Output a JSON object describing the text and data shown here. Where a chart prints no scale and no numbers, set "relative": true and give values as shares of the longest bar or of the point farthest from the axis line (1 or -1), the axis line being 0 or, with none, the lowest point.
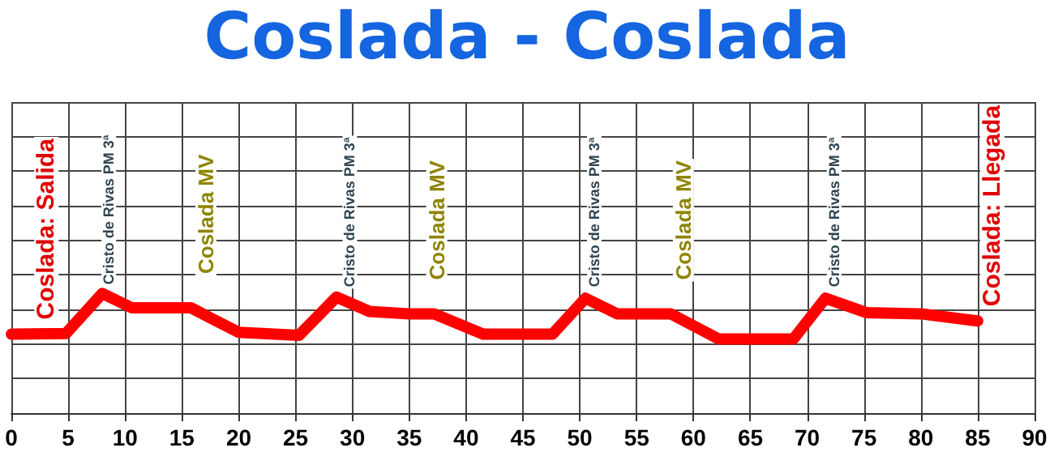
{
  "chart_data": {
    "type": "line",
    "title": "Coslada - Coslada",
    "relative": true,
    "grid": true,
    "line_style": "solid",
    "x": [
      0,
      4.8,
      8,
      10.6,
      15.8,
      20,
      25.3,
      28.6,
      31.5,
      35,
      37.2,
      41.5,
      47.6,
      50.5,
      53.3,
      58,
      62.2,
      68.8,
      71.6,
      75.2,
      80,
      85
    ],
    "xlim": [
      0,
      90
    ],
    "xticks": [
      0,
      5,
      10,
      15,
      20,
      25,
      30,
      35,
      40,
      45,
      50,
      55,
      60,
      65,
      70,
      75,
      80,
      85,
      90
    ],
    "series": [
      {
        "color": "#ff0000",
        "values": [
          0.66,
          0.665,
          1.0,
          0.88,
          0.88,
          0.675,
          0.65,
          0.97,
          0.85,
          0.83,
          0.83,
          0.66,
          0.66,
          0.96,
          0.83,
          0.83,
          0.62,
          0.62,
          0.96,
          0.84,
          0.83,
          0.77
        ]
      }
    ],
    "annotations": [
      {
        "text": "Coslada: Salida",
        "x": 1.8,
        "y": 0.66
      },
      {
        "text": "Cristo de Rivas PM 3ª",
        "x": 7.8,
        "y": 0.98
      },
      {
        "text": "Coslada MV",
        "x": 16,
        "y": 0.88
      },
      {
        "text": "Cristo de Rivas PM 3ª",
        "x": 29,
        "y": 0.96
      },
      {
        "text": "Coslada MV",
        "x": 36.3,
        "y": 0.83
      },
      {
        "text": "Cristo de Rivas PM 3ª",
        "x": 50.5,
        "y": 0.96
      },
      {
        "text": "Coslada MV",
        "x": 58,
        "y": 0.83
      },
      {
        "text": "Cristo de Rivas PM 3ª",
        "x": 71.6,
        "y": 0.96
      },
      {
        "text": "Coslada: Llegada",
        "x": 85,
        "y": 0.77
      }
    ]
  }
}
